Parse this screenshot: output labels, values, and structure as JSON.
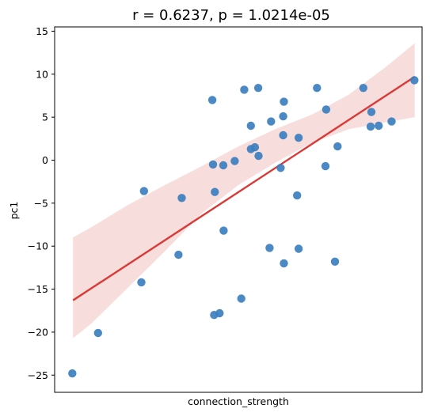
{
  "chart_data": {
    "type": "scatter",
    "title": "r = 0.6237,   p = 1.0214e-05",
    "xlabel": "connection_strength",
    "ylabel": "pc1",
    "x_ticks_shown": false,
    "xlim": [
      0,
      1
    ],
    "ylim": [
      -27,
      15.5
    ],
    "yticks": [
      15,
      10,
      5,
      0,
      -5,
      -10,
      -15,
      -20,
      -25
    ],
    "grid": false,
    "colors": {
      "points": "#3b7fbf",
      "regression_line": "#d93a36",
      "confidence_band": "#f4c6c6"
    },
    "regression": {
      "x": [
        0.05,
        0.98
      ],
      "y": [
        -16.3,
        9.7
      ]
    },
    "confidence_band": {
      "x": [
        0.05,
        0.1,
        0.2,
        0.3,
        0.4,
        0.5,
        0.6,
        0.7,
        0.8,
        0.9,
        0.98
      ],
      "upper": [
        -9.0,
        -7.8,
        -5.2,
        -2.9,
        -0.7,
        1.6,
        3.6,
        5.3,
        7.6,
        10.8,
        13.6
      ],
      "lower": [
        -20.7,
        -19.0,
        -14.8,
        -10.6,
        -6.2,
        -2.9,
        -0.3,
        2.0,
        3.6,
        4.4,
        5.0
      ]
    },
    "points": [
      {
        "x": 0.048,
        "y": -24.8
      },
      {
        "x": 0.118,
        "y": -20.1
      },
      {
        "x": 0.236,
        "y": -14.2
      },
      {
        "x": 0.243,
        "y": -3.6
      },
      {
        "x": 0.337,
        "y": -11.0
      },
      {
        "x": 0.346,
        "y": -4.4
      },
      {
        "x": 0.429,
        "y": 7.0
      },
      {
        "x": 0.431,
        "y": -0.5
      },
      {
        "x": 0.436,
        "y": -3.7
      },
      {
        "x": 0.434,
        "y": -18.0
      },
      {
        "x": 0.449,
        "y": -17.8
      },
      {
        "x": 0.459,
        "y": -0.6
      },
      {
        "x": 0.46,
        "y": -8.2
      },
      {
        "x": 0.49,
        "y": -0.1
      },
      {
        "x": 0.508,
        "y": -16.1
      },
      {
        "x": 0.516,
        "y": 8.2
      },
      {
        "x": 0.534,
        "y": 4.0
      },
      {
        "x": 0.534,
        "y": 1.3
      },
      {
        "x": 0.545,
        "y": 1.5
      },
      {
        "x": 0.554,
        "y": 8.4
      },
      {
        "x": 0.555,
        "y": 0.5
      },
      {
        "x": 0.585,
        "y": -10.2
      },
      {
        "x": 0.589,
        "y": 4.5
      },
      {
        "x": 0.615,
        "y": -0.9
      },
      {
        "x": 0.622,
        "y": 2.9
      },
      {
        "x": 0.622,
        "y": 5.1
      },
      {
        "x": 0.624,
        "y": 6.8
      },
      {
        "x": 0.624,
        "y": -12.0
      },
      {
        "x": 0.66,
        "y": -4.1
      },
      {
        "x": 0.664,
        "y": 2.6
      },
      {
        "x": 0.664,
        "y": -10.3
      },
      {
        "x": 0.714,
        "y": 8.4
      },
      {
        "x": 0.737,
        "y": -0.7
      },
      {
        "x": 0.739,
        "y": 5.9
      },
      {
        "x": 0.763,
        "y": -11.8
      },
      {
        "x": 0.77,
        "y": 1.6
      },
      {
        "x": 0.84,
        "y": 8.4
      },
      {
        "x": 0.86,
        "y": 3.9
      },
      {
        "x": 0.862,
        "y": 5.6
      },
      {
        "x": 0.882,
        "y": 4.0
      },
      {
        "x": 0.917,
        "y": 4.5
      },
      {
        "x": 0.979,
        "y": 9.3
      }
    ]
  }
}
